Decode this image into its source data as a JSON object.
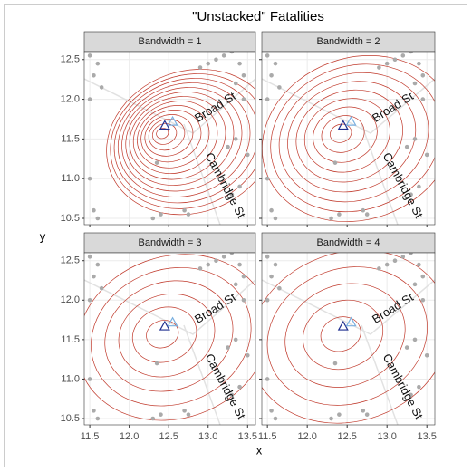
{
  "title": "\"Unstacked\" Fatalities",
  "x_label": "x",
  "y_label": "y",
  "fatalities": {
    "x": [
      11.5,
      11.6,
      11.55,
      11.65,
      11.5,
      12.9,
      13.0,
      13.1,
      13.2,
      13.3,
      13.4,
      13.45,
      13.35,
      13.25,
      13.5,
      13.4,
      13.3,
      12.7,
      12.75,
      12.3,
      12.4,
      12.35,
      11.55,
      11.6,
      11.5,
      13.35,
      13.45
    ],
    "y": [
      12.55,
      12.45,
      12.3,
      12.15,
      12.0,
      12.4,
      12.45,
      12.5,
      12.55,
      12.6,
      12.45,
      12.3,
      11.5,
      11.4,
      11.3,
      10.9,
      10.8,
      10.6,
      10.55,
      10.5,
      10.55,
      11.2,
      10.6,
      10.5,
      11.0,
      12.2,
      12.0
    ]
  },
  "chart_data": [
    {
      "type": "contour",
      "title": "Bandwidth = 1",
      "annotations": [
        "Broad St",
        "Cambridge St"
      ],
      "pumps": {
        "x": [
          12.45,
          12.55
        ],
        "y": [
          11.67,
          11.72
        ],
        "colors": [
          "#1f2f8f",
          "#7ab0e0"
        ]
      },
      "xlim": [
        11.43,
        13.6
      ],
      "ylim": [
        10.42,
        12.6
      ],
      "xticks": [
        11.5,
        {
          "value": 12,
          "label": "12.0"
        },
        12.5,
        {
          "value": 13,
          "label": "13.0"
        },
        13.5
      ],
      "yticks": [
        10.5,
        {
          "value": 11,
          "label": "11.0"
        },
        11.5,
        {
          "value": 12,
          "label": "12.0"
        },
        12.5
      ]
    },
    {
      "type": "contour",
      "title": "Bandwidth = 2",
      "annotations": [
        "Broad St",
        "Cambridge St"
      ],
      "pumps": {
        "x": [
          12.45,
          12.55
        ],
        "y": [
          11.67,
          11.72
        ],
        "colors": [
          "#1f2f8f",
          "#7ab0e0"
        ]
      },
      "xlim": [
        11.43,
        13.6
      ],
      "ylim": [
        10.42,
        12.6
      ],
      "xticks": [
        11.5,
        {
          "value": 12,
          "label": "12.0"
        },
        12.5,
        {
          "value": 13,
          "label": "13.0"
        },
        13.5
      ],
      "yticks": [
        10.5,
        {
          "value": 11,
          "label": "11.0"
        },
        11.5,
        {
          "value": 12,
          "label": "12.0"
        },
        12.5
      ]
    },
    {
      "type": "contour",
      "title": "Bandwidth = 3",
      "annotations": [
        "Broad St",
        "Cambridge St"
      ],
      "pumps": {
        "x": [
          12.45,
          12.55
        ],
        "y": [
          11.67,
          11.72
        ],
        "colors": [
          "#1f2f8f",
          "#7ab0e0"
        ]
      },
      "xlim": [
        11.43,
        13.6
      ],
      "ylim": [
        10.42,
        12.6
      ],
      "xticks": [
        11.5,
        {
          "value": 12,
          "label": "12.0"
        },
        12.5,
        {
          "value": 13,
          "label": "13.0"
        },
        13.5
      ],
      "yticks": [
        10.5,
        {
          "value": 11,
          "label": "11.0"
        },
        11.5,
        {
          "value": 12,
          "label": "12.0"
        },
        12.5
      ]
    },
    {
      "type": "contour",
      "title": "Bandwidth = 4",
      "annotations": [
        "Broad St",
        "Cambridge St"
      ],
      "pumps": {
        "x": [
          12.45,
          12.55
        ],
        "y": [
          11.67,
          11.72
        ],
        "colors": [
          "#1f2f8f",
          "#7ab0e0"
        ]
      },
      "xlim": [
        11.43,
        13.6
      ],
      "ylim": [
        10.42,
        12.6
      ],
      "xticks": [
        11.5,
        {
          "value": 12,
          "label": "12.0"
        },
        12.5,
        {
          "value": 13,
          "label": "13.0"
        },
        13.5
      ],
      "yticks": [
        10.5,
        {
          "value": 11,
          "label": "11.0"
        },
        11.5,
        {
          "value": 12,
          "label": "12.0"
        },
        12.5
      ]
    }
  ]
}
